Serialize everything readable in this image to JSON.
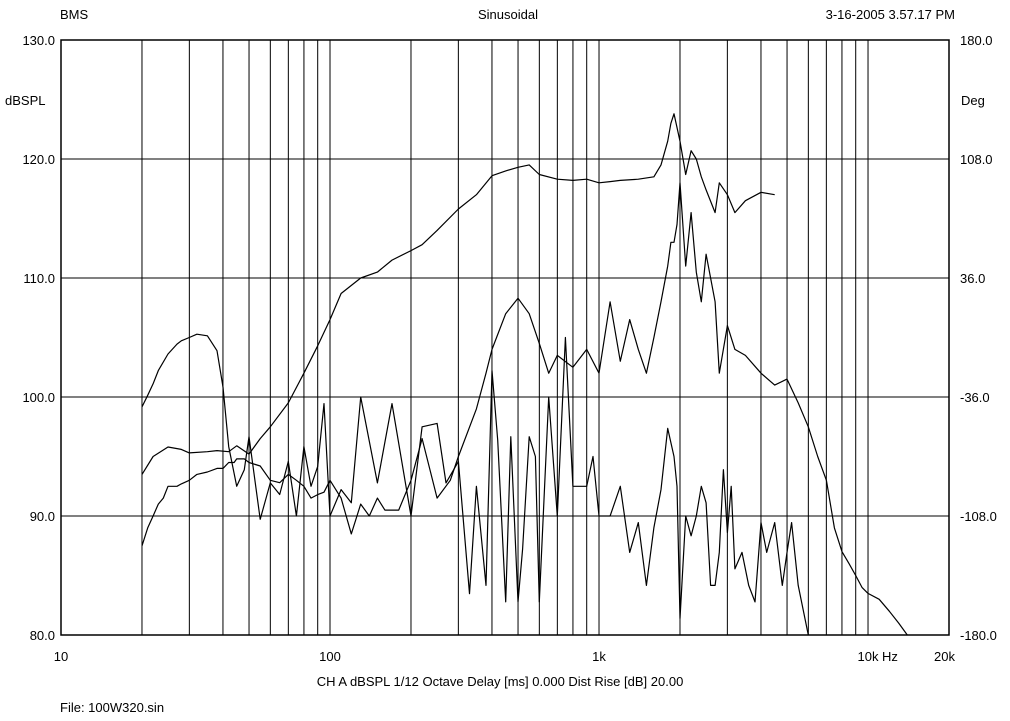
{
  "header": {
    "left": "BMS",
    "center": "Sinusoidal",
    "right": "3-16-2005 3.57.17 PM"
  },
  "footer": {
    "settings": "CH A   dBSPL   1/12 Octave   Delay [ms] 0.000   Dist Rise [dB] 20.00",
    "file": "File: 100W320.sin"
  },
  "colors": {
    "background": "#ffffff",
    "ink": "#000000"
  },
  "chart_data": {
    "type": "line",
    "title": "Sinusoidal",
    "x_scale": "log",
    "xlim": [
      10,
      20000
    ],
    "xlabel": "Hz",
    "x_ticks": [
      {
        "value": 10,
        "label": "10"
      },
      {
        "value": 100,
        "label": "100"
      },
      {
        "value": 1000,
        "label": "1k"
      },
      {
        "value": 10000,
        "label": "10k"
      },
      {
        "value": 20000,
        "label": "20k"
      }
    ],
    "ylim": [
      80,
      130
    ],
    "ylabel": "dBSPL",
    "y_ticks": [
      80,
      90,
      100,
      110,
      120,
      130
    ],
    "y_tick_labels": [
      "80.0",
      "90.0",
      "100.0",
      "110.0",
      "120.0",
      "130.0"
    ],
    "y2lim": [
      -180,
      180
    ],
    "y2label": "Deg",
    "y2_ticks": [
      -180,
      -108,
      -36,
      36,
      108,
      180
    ],
    "y2_tick_labels": [
      "-180.0",
      "-108.0",
      "-36.0",
      "36.0",
      "108.0",
      "180.0"
    ],
    "grid": true,
    "series": [
      {
        "id": "spl",
        "axis": "left",
        "x": [
          20,
          22,
          25,
          28,
          30,
          35,
          38,
          42,
          45,
          50,
          55,
          60,
          70,
          80,
          90,
          100,
          110,
          130,
          150,
          170,
          200,
          220,
          250,
          300,
          350,
          400,
          450,
          500,
          550,
          600,
          700,
          800,
          900,
          1000,
          1100,
          1200,
          1400,
          1600,
          1700,
          1800,
          1850,
          1900,
          2000,
          2100,
          2200,
          2300,
          2400,
          2500,
          2700,
          2800,
          3000,
          3200,
          3500,
          4000,
          4500
        ],
        "y": [
          93.5,
          95,
          95.8,
          95.6,
          95.3,
          95.4,
          95.5,
          95.4,
          95.9,
          95.2,
          96.5,
          97.5,
          99.5,
          102,
          104.3,
          106.5,
          108.7,
          110,
          110.5,
          111.5,
          112.3,
          112.8,
          114,
          115.8,
          117,
          118.6,
          119,
          119.3,
          119.5,
          118.7,
          118.3,
          118.2,
          118.3,
          118,
          118.1,
          118.2,
          118.3,
          118.5,
          119.5,
          121.5,
          123,
          123.8,
          121.5,
          118.7,
          120.7,
          120,
          118.5,
          117.4,
          115.5,
          118,
          117,
          115.5,
          116.5,
          117.2,
          117
        ]
      },
      {
        "id": "phase",
        "axis": "right",
        "x": [
          20,
          21,
          22,
          23,
          25,
          27,
          28,
          30,
          32,
          35,
          38,
          40,
          42,
          45,
          48,
          50,
          55,
          60,
          65,
          70,
          75,
          80,
          85,
          90,
          95,
          100,
          110,
          120,
          130,
          150,
          170,
          200,
          220,
          250,
          270,
          300,
          330,
          350,
          380,
          400,
          420,
          450,
          470,
          500,
          520,
          550,
          580,
          600,
          650,
          700,
          750,
          800,
          850,
          900,
          950,
          1000,
          1100,
          1200,
          1300,
          1400,
          1500,
          1600,
          1700,
          1800,
          1900,
          1950,
          2000,
          2100,
          2200,
          2300,
          2400,
          2500,
          2600,
          2700,
          2800,
          2900,
          3000,
          3100,
          3200,
          3400,
          3600,
          3800,
          4000,
          4200,
          4500,
          4800,
          5000,
          5200,
          5500,
          6000
        ],
        "y": [
          -42,
          -35,
          -28,
          -20,
          -10,
          -4,
          -2,
          0,
          2,
          1,
          -8,
          -30,
          -66,
          -90,
          -80,
          -60,
          -110,
          -88,
          -95,
          -75,
          -108,
          -66,
          -90,
          -78,
          -40,
          -108,
          -92,
          -100,
          -36,
          -88,
          -40,
          -108,
          -54,
          -52,
          -88,
          -75,
          -155,
          -90,
          -150,
          -20,
          -62,
          -160,
          -60,
          -160,
          -128,
          -60,
          -72,
          -160,
          -36,
          -108,
          0,
          -90,
          -90,
          -90,
          -72,
          -108,
          -108,
          -90,
          -130,
          -112,
          -150,
          -115,
          -92,
          -55,
          -72,
          -90,
          -170,
          -108,
          -120,
          -108,
          -90,
          -100,
          -150,
          -150,
          -130,
          -80,
          -118,
          -90,
          -140,
          -130,
          -150,
          -160,
          -112,
          -130,
          -112,
          -150,
          -130,
          -112,
          -150,
          -180
        ]
      },
      {
        "id": "harmonic",
        "axis": "left",
        "x": [
          20,
          21,
          22,
          23,
          24,
          25,
          27,
          28,
          30,
          32,
          35,
          38,
          40,
          42,
          44,
          45,
          48,
          50,
          55,
          60,
          65,
          70,
          75,
          80,
          85,
          90,
          95,
          100,
          110,
          120,
          130,
          140,
          150,
          160,
          180,
          200,
          220,
          250,
          280,
          300,
          350,
          380,
          400,
          450,
          500,
          550,
          600,
          650,
          700,
          800,
          900,
          1000,
          1100,
          1200,
          1300,
          1400,
          1500,
          1600,
          1700,
          1800,
          1850,
          1900,
          1950,
          2000,
          2100,
          2200,
          2300,
          2400,
          2500,
          2600,
          2700,
          2800,
          3000,
          3200,
          3500,
          4000,
          4500,
          5000,
          5500,
          6000,
          6500,
          7000,
          7500,
          8000,
          8500,
          9000,
          9500,
          10000,
          11000,
          12000,
          13000,
          14000
        ],
        "y": [
          87.5,
          89,
          90,
          91,
          91.5,
          92.5,
          92.5,
          92.7,
          93,
          93.5,
          93.7,
          94,
          94,
          94.5,
          94.5,
          94.8,
          94.8,
          94.5,
          94.2,
          93,
          92.8,
          93.5,
          93,
          92.5,
          91.5,
          91.8,
          92,
          93,
          91.5,
          88.5,
          91,
          90,
          91.5,
          90.5,
          90.5,
          93,
          96.5,
          91.5,
          93,
          95,
          99,
          102,
          104,
          107,
          108.3,
          107,
          104.5,
          102,
          103.5,
          102.5,
          104,
          102,
          108,
          103,
          106.5,
          104,
          102,
          105,
          108,
          111,
          113,
          113,
          114.5,
          118,
          111,
          115.5,
          110.5,
          108,
          112,
          110,
          108,
          102,
          106,
          104,
          103.5,
          102,
          101,
          101.5,
          99.5,
          97.5,
          95,
          93,
          89,
          87,
          86,
          85,
          84,
          83.5,
          83,
          82,
          81,
          80
        ]
      }
    ]
  }
}
